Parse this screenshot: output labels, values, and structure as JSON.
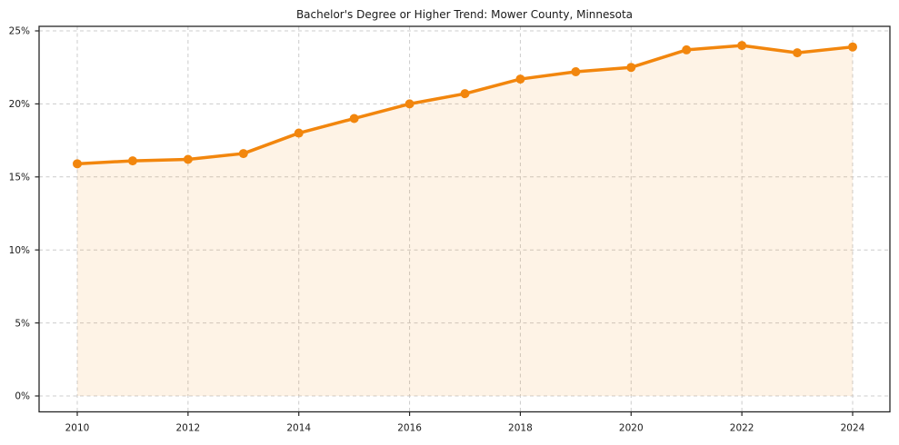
{
  "chart_data": {
    "type": "line",
    "title": "Bachelor's Degree or Higher Trend: Mower County, Minnesota",
    "xlabel": "",
    "ylabel": "",
    "x": [
      2010,
      2011,
      2012,
      2013,
      2014,
      2015,
      2016,
      2017,
      2018,
      2019,
      2020,
      2021,
      2022,
      2023,
      2024
    ],
    "values": [
      15.9,
      16.1,
      16.2,
      16.6,
      18.0,
      19.0,
      20.0,
      20.7,
      21.7,
      22.2,
      22.5,
      23.7,
      24.0,
      23.5,
      23.9
    ],
    "ylim": [
      0,
      25
    ],
    "xticks": [
      2010,
      2012,
      2014,
      2016,
      2018,
      2020,
      2022,
      2024
    ],
    "yticks": [
      0,
      5,
      10,
      15,
      20,
      25
    ],
    "ytick_suffix": "%",
    "grid": true,
    "grid_style": "dashed",
    "legend": "none",
    "marker": "circle",
    "area_fill": true
  },
  "colors": {
    "line": "#F2860D",
    "area_fill": "#F2860D",
    "area_fill_opacity": 0.1,
    "grid": "#cccccc",
    "axis": "#262626",
    "text": "#1a1a1a",
    "background": "#ffffff"
  }
}
